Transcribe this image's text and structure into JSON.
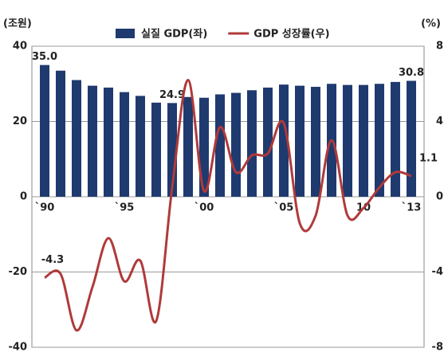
{
  "chart_data": {
    "type": "bar_line",
    "y_label": "(조원)",
    "y2_label": "(%)",
    "categories": [
      "`90",
      null,
      null,
      null,
      null,
      "`95",
      null,
      null,
      null,
      null,
      "`00",
      null,
      null,
      null,
      null,
      "`05",
      null,
      null,
      null,
      null,
      "10",
      null,
      null,
      "`13"
    ],
    "series": [
      {
        "name": "실질 GDP(좌)",
        "type": "bar",
        "color": "#1f3a6e",
        "values": [
          35.0,
          33.5,
          31.0,
          29.5,
          29.0,
          27.8,
          26.8,
          25.0,
          24.9,
          26.5,
          26.3,
          27.2,
          27.6,
          28.3,
          29.0,
          29.8,
          29.5,
          29.2,
          30.0,
          29.7,
          29.7,
          30.0,
          30.5,
          30.8
        ],
        "value_labels": [
          "35.0",
          null,
          null,
          null,
          null,
          null,
          null,
          null,
          "24.9",
          null,
          null,
          null,
          null,
          null,
          null,
          null,
          null,
          null,
          null,
          null,
          null,
          null,
          null,
          "30.8"
        ]
      },
      {
        "name": "GDP 성장률(우)",
        "type": "line",
        "axis": "y2",
        "color": "#b03a3a",
        "values": [
          -4.3,
          -4.1,
          -7.1,
          -4.8,
          -2.2,
          -4.5,
          -3.4,
          -6.6,
          0.5,
          6.2,
          0.3,
          3.7,
          1.3,
          2.2,
          2.3,
          3.9,
          -1.4,
          -1.0,
          3.0,
          -1.0,
          -0.6,
          0.5,
          1.3,
          1.1
        ],
        "value_labels": [
          "-4.3",
          null,
          null,
          null,
          null,
          null,
          null,
          null,
          null,
          null,
          null,
          null,
          null,
          null,
          null,
          null,
          null,
          null,
          null,
          null,
          null,
          null,
          null,
          "1.1"
        ]
      }
    ],
    "ylim": [
      -40,
      40
    ],
    "yticks": [
      -40,
      -20,
      0,
      20,
      40
    ],
    "y2lim": [
      -8,
      8
    ],
    "y2ticks": [
      -8,
      -4,
      0,
      4,
      8
    ],
    "grid": true
  }
}
